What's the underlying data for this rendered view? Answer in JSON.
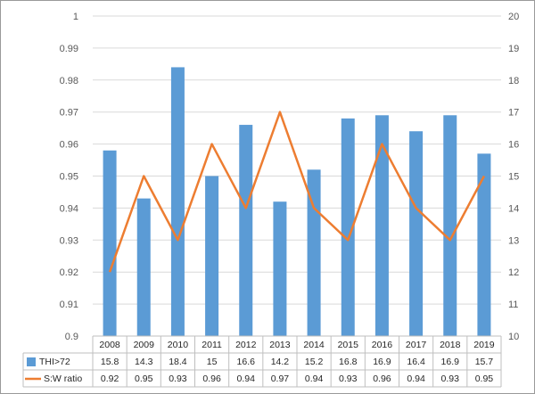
{
  "chart_data": {
    "type": "bar",
    "categories": [
      "2008",
      "2009",
      "2010",
      "2011",
      "2012",
      "2013",
      "2014",
      "2015",
      "2016",
      "2017",
      "2018",
      "2019"
    ],
    "series": [
      {
        "name": "THI>72",
        "type": "bar",
        "axis": "right",
        "values": [
          15.8,
          14.3,
          18.4,
          15,
          16.6,
          14.2,
          15.2,
          16.8,
          16.9,
          16.4,
          16.9,
          15.7
        ],
        "labels": [
          "15.8",
          "14.3",
          "18.4",
          "15",
          "16.6",
          "14.2",
          "15.2",
          "16.8",
          "16.9",
          "16.4",
          "16.9",
          "15.7"
        ],
        "color": "#5b9bd5"
      },
      {
        "name": "S:W ratio",
        "type": "line",
        "axis": "left",
        "values": [
          0.92,
          0.95,
          0.93,
          0.96,
          0.94,
          0.97,
          0.94,
          0.93,
          0.96,
          0.94,
          0.93,
          0.95
        ],
        "labels": [
          "0.92",
          "0.95",
          "0.93",
          "0.96",
          "0.94",
          "0.97",
          "0.94",
          "0.93",
          "0.96",
          "0.94",
          "0.93",
          "0.95"
        ],
        "color": "#ed7d31"
      }
    ],
    "y_left": {
      "min": 0.9,
      "max": 1.0,
      "step": 0.01,
      "ticks": [
        "0.9",
        "0.91",
        "0.92",
        "0.93",
        "0.94",
        "0.95",
        "0.96",
        "0.97",
        "0.98",
        "0.99",
        "1"
      ]
    },
    "y_right": {
      "min": 10,
      "max": 20,
      "step": 1,
      "ticks": [
        "10",
        "11",
        "12",
        "13",
        "14",
        "15",
        "16",
        "17",
        "18",
        "19",
        "20"
      ]
    },
    "grid": true,
    "legend": "data-table",
    "title": "",
    "xlabel": "",
    "ylabel": ""
  }
}
